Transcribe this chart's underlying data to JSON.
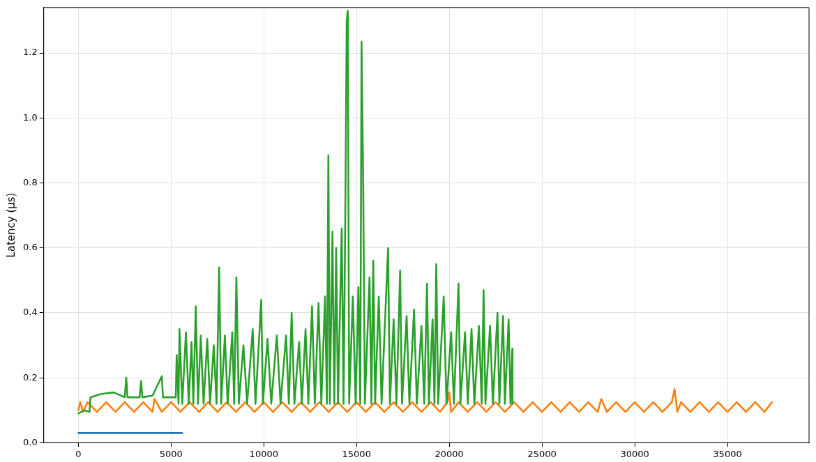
{
  "chart_data": {
    "type": "line",
    "ylabel": "Latency (µs)",
    "xlim": [
      -1870,
      39400
    ],
    "xticks": [
      0,
      5000,
      10000,
      15000,
      20000,
      25000,
      30000,
      35000
    ],
    "ylim": [
      0,
      1.34
    ],
    "yticks": [
      {
        "value": 0,
        "label": "0.0"
      },
      0.2,
      0.4,
      0.6,
      0.8,
      {
        "value": 1,
        "label": "1.0"
      },
      1.2
    ],
    "grid": true,
    "legend": false,
    "marker": "none",
    "line_style": "solid",
    "series": [
      {
        "color": "#1f77b4",
        "x": [
          0,
          5600
        ],
        "values": [
          0.03,
          0.03
        ]
      },
      {
        "color": "#2ca02c",
        "x": [
          0,
          300,
          600,
          650,
          1200,
          1900,
          2500,
          2580,
          2650,
          3300,
          3380,
          3450,
          4000,
          4500,
          4560,
          5250,
          5300,
          5400,
          5450,
          5600,
          5800,
          5950,
          6100,
          6200,
          6330,
          6450,
          6600,
          6750,
          6950,
          7100,
          7300,
          7450,
          7590,
          7700,
          7900,
          8050,
          8300,
          8400,
          8520,
          8650,
          8900,
          9100,
          9400,
          9550,
          9860,
          9950,
          10200,
          10400,
          10700,
          10900,
          11200,
          11350,
          11500,
          11650,
          11900,
          12050,
          12250,
          12400,
          12600,
          12750,
          12950,
          13100,
          13300,
          13400,
          13480,
          13560,
          13700,
          13800,
          13900,
          14000,
          14200,
          14300,
          14400,
          14470,
          14530,
          14600,
          14800,
          14950,
          15100,
          15200,
          15270,
          15360,
          15450,
          15700,
          15800,
          15900,
          16000,
          16200,
          16350,
          16700,
          16800,
          17000,
          17150,
          17350,
          17450,
          17700,
          17850,
          18100,
          18250,
          18500,
          18650,
          18800,
          18900,
          19100,
          19200,
          19300,
          19400,
          19700,
          19850,
          20100,
          20250,
          20500,
          20600,
          20850,
          21000,
          21200,
          21350,
          21600,
          21750,
          21850,
          21950,
          22200,
          22350,
          22600,
          22700,
          22900,
          23000,
          23200,
          23300,
          23400,
          23410
        ],
        "values": [
          0.09,
          0.1,
          0.095,
          0.14,
          0.15,
          0.155,
          0.14,
          0.2,
          0.14,
          0.14,
          0.19,
          0.14,
          0.145,
          0.205,
          0.14,
          0.14,
          0.27,
          0.12,
          0.35,
          0.12,
          0.34,
          0.12,
          0.31,
          0.12,
          0.42,
          0.12,
          0.33,
          0.12,
          0.32,
          0.12,
          0.3,
          0.12,
          0.54,
          0.12,
          0.33,
          0.12,
          0.34,
          0.12,
          0.51,
          0.12,
          0.3,
          0.12,
          0.35,
          0.12,
          0.44,
          0.12,
          0.32,
          0.12,
          0.33,
          0.12,
          0.33,
          0.12,
          0.4,
          0.12,
          0.31,
          0.12,
          0.35,
          0.12,
          0.42,
          0.12,
          0.43,
          0.12,
          0.45,
          0.12,
          0.885,
          0.12,
          0.65,
          0.12,
          0.6,
          0.12,
          0.66,
          0.12,
          0.75,
          1.3,
          1.33,
          0.12,
          0.45,
          0.12,
          0.48,
          0.12,
          1.235,
          0.79,
          0.12,
          0.51,
          0.12,
          0.56,
          0.12,
          0.45,
          0.12,
          0.6,
          0.12,
          0.38,
          0.12,
          0.53,
          0.12,
          0.39,
          0.12,
          0.41,
          0.12,
          0.36,
          0.12,
          0.49,
          0.12,
          0.38,
          0.12,
          0.55,
          0.12,
          0.45,
          0.12,
          0.34,
          0.12,
          0.49,
          0.12,
          0.34,
          0.12,
          0.35,
          0.12,
          0.36,
          0.12,
          0.47,
          0.12,
          0.36,
          0.12,
          0.4,
          0.12,
          0.39,
          0.12,
          0.38,
          0.12,
          0.29,
          0.12
        ]
      },
      {
        "color": "#ff7f0e",
        "x": [
          0,
          100,
          250,
          500,
          1000,
          1500,
          2000,
          2500,
          3000,
          3500,
          4000,
          4100,
          4500,
          5000,
          5500,
          6000,
          6500,
          7000,
          7500,
          8000,
          8500,
          9000,
          9500,
          10000,
          10500,
          11000,
          11500,
          12000,
          12500,
          13000,
          13500,
          14000,
          14500,
          15000,
          15500,
          16000,
          16500,
          17000,
          17500,
          18000,
          18500,
          19000,
          19500,
          19900,
          20000,
          20100,
          20500,
          21000,
          21500,
          22000,
          22500,
          23000,
          23500,
          24000,
          24500,
          25000,
          25500,
          26000,
          26500,
          27000,
          27500,
          28000,
          28200,
          28500,
          29000,
          29500,
          30000,
          30500,
          31000,
          31500,
          32000,
          32150,
          32300,
          32500,
          33000,
          33500,
          34000,
          34500,
          35000,
          35500,
          36000,
          36500,
          37000,
          37400
        ],
        "values": [
          0.1,
          0.125,
          0.095,
          0.125,
          0.095,
          0.125,
          0.095,
          0.125,
          0.095,
          0.125,
          0.095,
          0.135,
          0.095,
          0.125,
          0.095,
          0.125,
          0.095,
          0.125,
          0.095,
          0.125,
          0.095,
          0.125,
          0.095,
          0.125,
          0.095,
          0.125,
          0.095,
          0.125,
          0.095,
          0.125,
          0.095,
          0.125,
          0.095,
          0.125,
          0.095,
          0.125,
          0.095,
          0.125,
          0.095,
          0.125,
          0.095,
          0.125,
          0.095,
          0.125,
          0.155,
          0.095,
          0.125,
          0.095,
          0.125,
          0.095,
          0.125,
          0.095,
          0.125,
          0.095,
          0.125,
          0.095,
          0.125,
          0.095,
          0.125,
          0.095,
          0.125,
          0.095,
          0.135,
          0.095,
          0.125,
          0.095,
          0.125,
          0.095,
          0.125,
          0.095,
          0.125,
          0.165,
          0.095,
          0.125,
          0.095,
          0.125,
          0.095,
          0.125,
          0.095,
          0.125,
          0.095,
          0.125,
          0.095,
          0.125
        ]
      }
    ]
  }
}
